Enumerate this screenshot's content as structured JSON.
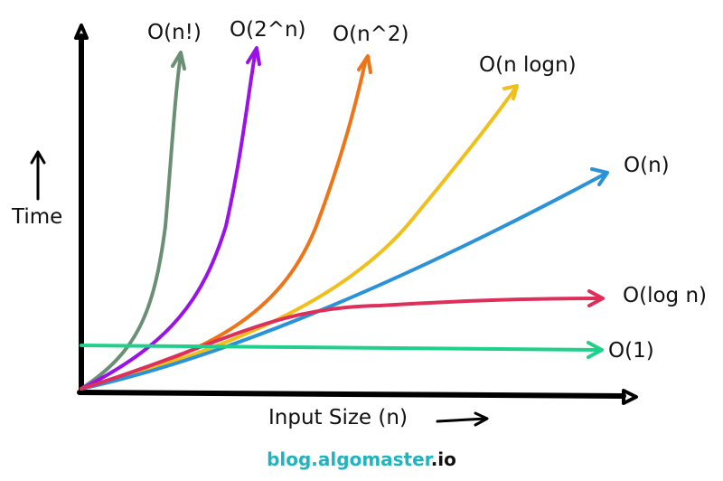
{
  "chart_data": {
    "type": "line",
    "xlabel": "Input Size (n)",
    "ylabel": "Time",
    "grid": false,
    "legend": "none",
    "series": [
      {
        "name": "O(n!)",
        "color": "#6b8f75",
        "values": [
          1,
          4,
          15,
          60,
          260,
          1200
        ]
      },
      {
        "name": "O(2^n)",
        "color": "#9a12e8",
        "values": [
          1,
          5,
          18,
          60,
          210,
          800
        ]
      },
      {
        "name": "O(n^2)",
        "color": "#ee7417",
        "values": [
          1,
          6,
          20,
          55,
          150,
          400
        ]
      },
      {
        "name": "O(n logn)",
        "color": "#f1bf1a",
        "values": [
          1,
          6,
          16,
          32,
          55,
          85
        ]
      },
      {
        "name": "O(n)",
        "color": "#2a92d6",
        "values": [
          1,
          6,
          12,
          20,
          32,
          52
        ]
      },
      {
        "name": "O(log n)",
        "color": "#de2e5a",
        "values": [
          1,
          6,
          12,
          16,
          18,
          20
        ]
      },
      {
        "name": "O(1)",
        "color": "#1fcf8a",
        "values": [
          10,
          10,
          10,
          10,
          10,
          10
        ]
      }
    ]
  },
  "footer": {
    "part1": "blog.",
    "part2": "algomaster",
    "part3": ".io",
    "color1": "#21b3bf",
    "color2": "#111111"
  }
}
